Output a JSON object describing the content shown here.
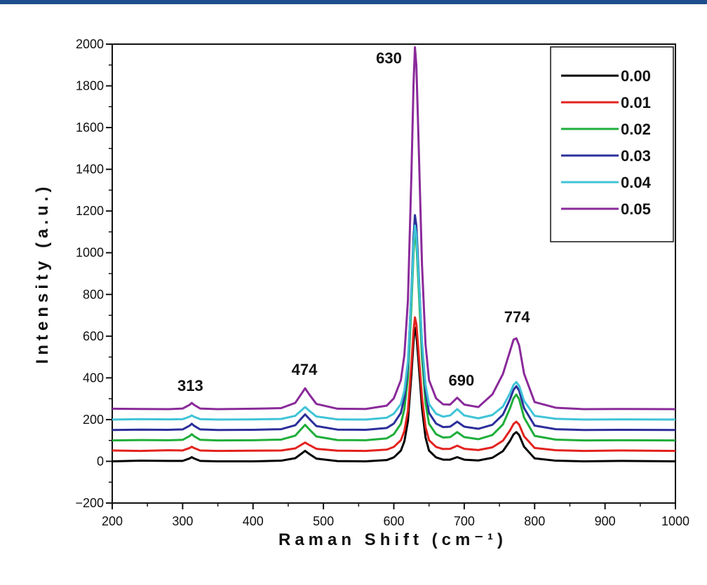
{
  "chart_data": {
    "type": "line",
    "x_label": "Raman Shift (cm⁻¹)",
    "y_label": "Intensity (a.u.)",
    "xlim": [
      200,
      1000
    ],
    "ylim": [
      -200,
      2000
    ],
    "xticks": [
      200,
      300,
      400,
      500,
      600,
      700,
      800,
      900,
      1000
    ],
    "yticks": [
      {
        "value": -200,
        "label": "−200"
      },
      0,
      200,
      400,
      600,
      800,
      1000,
      1200,
      1400,
      1600,
      1800,
      2000
    ],
    "xminorticks": [
      250,
      350,
      450,
      550,
      650,
      750,
      850,
      950
    ],
    "yminorticks": [
      -100,
      100,
      300,
      500,
      700,
      900,
      1100,
      1300,
      1500,
      1700,
      1900
    ],
    "legend": "upper right",
    "annotations": [
      {
        "text": "313",
        "x": 311,
        "y": 364
      },
      {
        "text": "474",
        "x": 473,
        "y": 442
      },
      {
        "text": "630",
        "x": 593,
        "y": 1935
      },
      {
        "text": "690",
        "x": 696,
        "y": 389
      },
      {
        "text": "774",
        "x": 775,
        "y": 694
      }
    ],
    "x": [
      200,
      240,
      280,
      300,
      310,
      313,
      316,
      325,
      350,
      400,
      440,
      460,
      468,
      474,
      480,
      490,
      520,
      560,
      590,
      600,
      610,
      615,
      620,
      625,
      628,
      630,
      632,
      635,
      640,
      645,
      650,
      660,
      670,
      680,
      690,
      700,
      720,
      740,
      755,
      765,
      770,
      774,
      778,
      785,
      800,
      830,
      870,
      920,
      1000
    ],
    "series": [
      {
        "name": "0.00",
        "color": "#000000",
        "values": [
          0,
          3,
          2,
          2,
          14,
          20,
          14,
          2,
          0,
          0,
          3,
          15,
          35,
          50,
          35,
          13,
          1,
          0,
          6,
          19,
          51,
          96,
          192,
          416,
          576,
          640,
          608,
          480,
          256,
          115,
          51,
          19,
          8,
          8,
          20,
          8,
          4,
          17,
          49,
          98,
          129,
          140,
          126,
          70,
          14,
          3,
          0,
          2,
          0
        ]
      },
      {
        "name": "0.01",
        "color": "#e3221e",
        "values": [
          52,
          50,
          53,
          52,
          64,
          70,
          64,
          52,
          50,
          51,
          52,
          62,
          78,
          90,
          78,
          60,
          51,
          50,
          56,
          69,
          101,
          146,
          242,
          466,
          626,
          690,
          658,
          530,
          306,
          165,
          101,
          69,
          59,
          60,
          75,
          60,
          54,
          67,
          99,
          148,
          179,
          190,
          176,
          120,
          64,
          53,
          50,
          52,
          50
        ]
      },
      {
        "name": "0.02",
        "color": "#1fae3a",
        "values": [
          100,
          102,
          101,
          103,
          121,
          130,
          121,
          103,
          100,
          101,
          104,
          123,
          153,
          175,
          153,
          119,
          102,
          101,
          110,
          130,
          180,
          250,
          400,
          750,
          1000,
          1100,
          1050,
          850,
          500,
          280,
          180,
          130,
          114,
          116,
          140,
          116,
          106,
          126,
          177,
          254,
          302,
          320,
          298,
          210,
          122,
          104,
          100,
          101,
          100
        ]
      },
      {
        "name": "0.03",
        "color": "#2b2f9a",
        "values": [
          150,
          152,
          151,
          153,
          171,
          180,
          171,
          153,
          150,
          151,
          154,
          173,
          203,
          225,
          203,
          169,
          152,
          151,
          160,
          181,
          232,
          305,
          459,
          820,
          1077,
          1180,
          1129,
          923,
          562,
          335,
          232,
          181,
          164,
          166,
          190,
          166,
          156,
          175,
          224,
          297,
          343,
          360,
          339,
          255,
          171,
          154,
          150,
          151,
          150
        ]
      },
      {
        "name": "0.04",
        "color": "#3fc4d6",
        "values": [
          200,
          202,
          201,
          202,
          214,
          220,
          214,
          202,
          200,
          201,
          203,
          218,
          242,
          260,
          242,
          215,
          201,
          200,
          209,
          228,
          274,
          340,
          479,
          805,
          1037,
          1130,
          1084,
          898,
          572,
          367,
          274,
          228,
          214,
          220,
          250,
          220,
          206,
          222,
          263,
          326,
          366,
          380,
          362,
          290,
          218,
          204,
          200,
          201,
          200
        ]
      },
      {
        "name": "0.05",
        "color": "#8a2a9a",
        "values": [
          252,
          251,
          250,
          253,
          271,
          280,
          271,
          253,
          250,
          252,
          255,
          280,
          320,
          350,
          320,
          275,
          252,
          251,
          267,
          302,
          389,
          510,
          771,
          1378,
          1812,
          1985,
          1898,
          1551,
          944,
          562,
          389,
          302,
          273,
          272,
          305,
          272,
          260,
          321,
          419,
          528,
          583,
          590,
          556,
          420,
          284,
          257,
          250,
          251,
          250
        ]
      }
    ]
  }
}
